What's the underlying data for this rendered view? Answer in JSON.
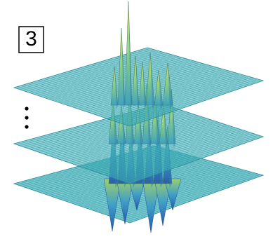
{
  "panel": {
    "label": "3"
  }
}
